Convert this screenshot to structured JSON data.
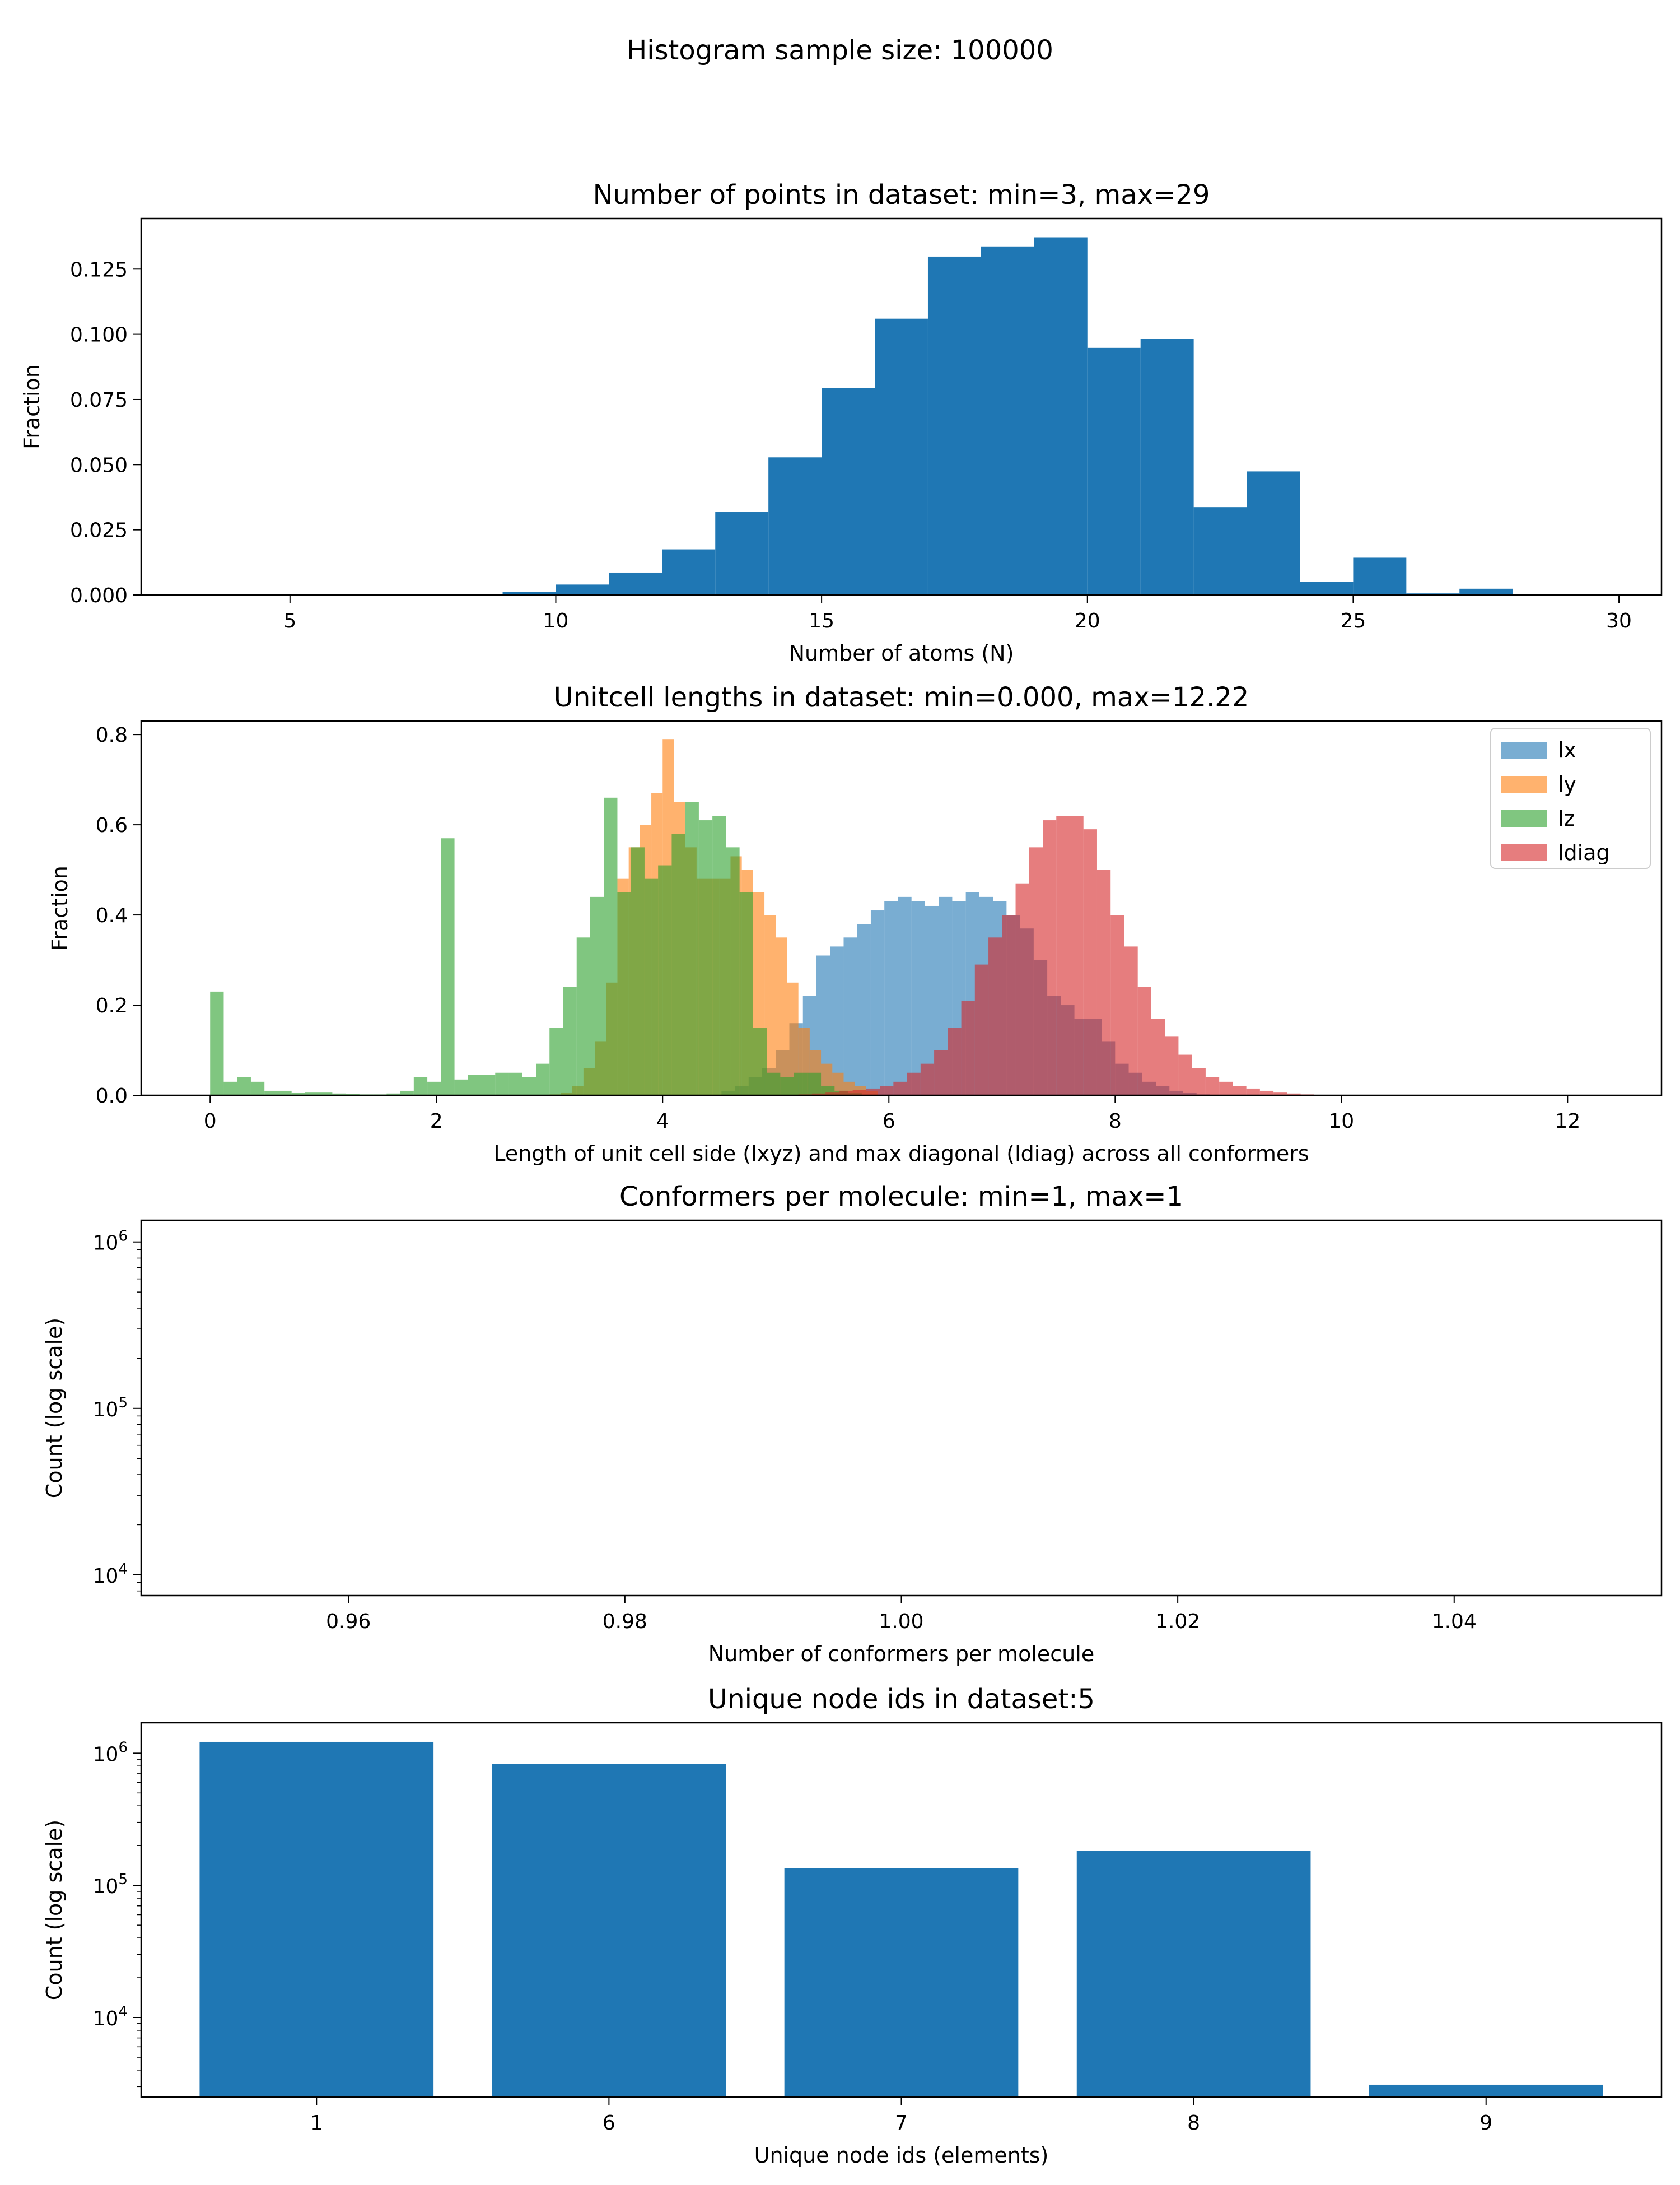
{
  "figure": {
    "suptitle": "Histogram sample size: 100000"
  },
  "colors": {
    "primary": "#1f77b4",
    "lx": "#1f77b4",
    "ly": "#ff7f0e",
    "lz": "#2ca02c",
    "ldiag": "#d62728"
  },
  "chart_data": [
    {
      "type": "bar",
      "title": "Number of points in dataset: min=3, max=29",
      "xlabel": "Number of atoms (N)",
      "ylabel": "Fraction",
      "xlim": [
        2.2,
        30.8
      ],
      "ylim": [
        0,
        0.1444
      ],
      "xticks": [
        5,
        10,
        15,
        20,
        25,
        30
      ],
      "yticks": [
        0.0,
        0.025,
        0.05,
        0.075,
        0.1,
        0.125
      ],
      "ytick_labels": [
        "0.000",
        "0.025",
        "0.050",
        "0.075",
        "0.100",
        "0.125"
      ],
      "bin_edges": [
        3,
        4,
        5,
        6,
        7,
        8,
        9,
        10,
        11,
        12,
        13,
        14,
        15,
        16,
        17,
        18,
        19,
        20,
        21,
        22,
        23,
        24,
        25,
        26,
        27,
        28,
        29
      ],
      "values": [
        0,
        0,
        0,
        0,
        0,
        0.0003,
        0.0012,
        0.004,
        0.0086,
        0.0175,
        0.0318,
        0.0528,
        0.0795,
        0.106,
        0.1298,
        0.1337,
        0.1372,
        0.0948,
        0.0982,
        0.0337,
        0.0474,
        0.0051,
        0.0143,
        0.0006,
        0.0024,
        0.0003
      ]
    },
    {
      "type": "bar",
      "title": "Unitcell lengths in dataset: min=0.000, max=12.22",
      "xlabel": "Length of unit cell side (lxyz) and max diagonal (ldiag) across all conformers",
      "ylabel": "Fraction",
      "xlim": [
        -0.61,
        12.83
      ],
      "ylim": [
        0,
        0.83
      ],
      "xticks": [
        0,
        2,
        4,
        6,
        8,
        10,
        12
      ],
      "yticks": [
        0.0,
        0.2,
        0.4,
        0.6,
        0.8
      ],
      "ytick_labels": [
        "0.0",
        "0.2",
        "0.4",
        "0.6",
        "0.8"
      ],
      "legend": {
        "placement": "top-right",
        "entries": [
          "lx",
          "ly",
          "lz",
          "ldiag"
        ]
      },
      "series": [
        {
          "name": "lx",
          "bin_start": 1.4,
          "bin_width": 0.12,
          "values": [
            0,
            0,
            0,
            0,
            0,
            0,
            0,
            0,
            0,
            0,
            0,
            0,
            0,
            0,
            0,
            0,
            0,
            0,
            0,
            0,
            0,
            0,
            0,
            0,
            0,
            0,
            0.01,
            0.02,
            0.04,
            0.06,
            0.1,
            0.16,
            0.22,
            0.31,
            0.33,
            0.35,
            0.38,
            0.41,
            0.43,
            0.44,
            0.43,
            0.42,
            0.44,
            0.43,
            0.45,
            0.44,
            0.43,
            0.4,
            0.37,
            0.3,
            0.22,
            0.2,
            0.17,
            0.17,
            0.12,
            0.07,
            0.05,
            0.03,
            0.02,
            0.01,
            0.005,
            0.002
          ]
        },
        {
          "name": "ly",
          "bin_start": 3.0,
          "bin_width": 0.1,
          "values": [
            0.002,
            0.005,
            0.02,
            0.06,
            0.12,
            0.25,
            0.48,
            0.55,
            0.6,
            0.67,
            0.79,
            0.65,
            0.55,
            0.48,
            0.48,
            0.48,
            0.53,
            0.5,
            0.45,
            0.4,
            0.35,
            0.25,
            0.15,
            0.1,
            0.07,
            0.05,
            0.03,
            0.02,
            0.01
          ]
        },
        {
          "name": "lz",
          "bin_start": 0.0,
          "bin_width": 0.12,
          "values": [
            0.23,
            0.03,
            0.04,
            0.03,
            0.01,
            0.01,
            0.005,
            0.006,
            0.006,
            0.004,
            0.003,
            0.002,
            0.002,
            0.004,
            0.01,
            0.04,
            0.03,
            0.57,
            0.035,
            0.045,
            0.045,
            0.05,
            0.05,
            0.04,
            0.07,
            0.15,
            0.24,
            0.35,
            0.44,
            0.66,
            0.45,
            0.55,
            0.48,
            0.51,
            0.58,
            0.65,
            0.61,
            0.62,
            0.55,
            0.45,
            0.15,
            0.05,
            0.04,
            0.05,
            0.05,
            0.02,
            0.01,
            0.005
          ]
        },
        {
          "name": "ldiag",
          "bin_start": 5.2,
          "bin_width": 0.12,
          "values": [
            0.002,
            0.004,
            0.006,
            0.01,
            0.012,
            0.015,
            0.02,
            0.03,
            0.05,
            0.07,
            0.1,
            0.15,
            0.21,
            0.29,
            0.35,
            0.4,
            0.47,
            0.55,
            0.61,
            0.62,
            0.62,
            0.59,
            0.5,
            0.4,
            0.33,
            0.24,
            0.17,
            0.13,
            0.09,
            0.06,
            0.04,
            0.03,
            0.02,
            0.015,
            0.01,
            0.006,
            0.004,
            0.002,
            0.001
          ]
        }
      ]
    },
    {
      "type": "bar",
      "title": "Conformers per molecule: min=1, max=1",
      "xlabel": "Number of conformers per molecule",
      "ylabel": "Count (log scale)",
      "yscale": "log",
      "xlim": [
        0.945,
        1.055
      ],
      "ylim": [
        7500,
        1350000
      ],
      "xticks": [
        0.96,
        0.98,
        1.0,
        1.02,
        1.04
      ],
      "xtick_labels": [
        "0.96",
        "0.98",
        "1.00",
        "1.02",
        "1.04"
      ],
      "yticks_major": [
        10000,
        100000,
        1000000
      ],
      "ytick_bases": [
        "10",
        "10",
        "10"
      ],
      "ytick_exponents": [
        "4",
        "5",
        "6"
      ],
      "values": []
    },
    {
      "type": "bar",
      "title": "Unique node ids in dataset:5",
      "xlabel": "Unique node ids (elements)",
      "ylabel": "Count (log scale)",
      "yscale": "log",
      "categories": [
        "1",
        "6",
        "7",
        "8",
        "9"
      ],
      "values": [
        1220000,
        830000,
        135000,
        183000,
        3100
      ],
      "ylim": [
        2500,
        1700000
      ],
      "yticks_major": [
        10000,
        100000,
        1000000
      ],
      "ytick_bases": [
        "10",
        "10",
        "10"
      ],
      "ytick_exponents": [
        "4",
        "5",
        "6"
      ]
    }
  ]
}
